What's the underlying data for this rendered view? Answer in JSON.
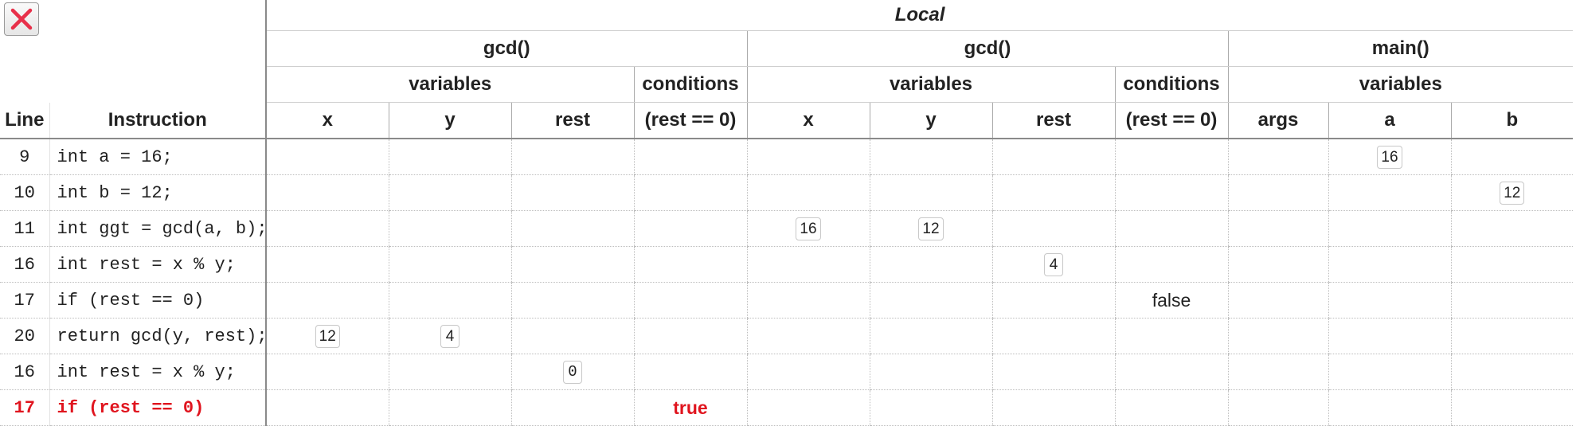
{
  "header": {
    "local_label": "Local",
    "frames": [
      "gcd()",
      "gcd()",
      "main()"
    ],
    "groups": [
      "variables",
      "conditions",
      "variables",
      "conditions",
      "variables"
    ],
    "columns": {
      "line": "Line",
      "instruction": "Instruction",
      "f1_x": "x",
      "f1_y": "y",
      "f1_rest": "rest",
      "f1_cond": "(rest == 0)",
      "f2_x": "x",
      "f2_y": "y",
      "f2_rest": "rest",
      "f2_cond": "(rest == 0)",
      "m_args": "args",
      "m_a": "a",
      "m_b": "b"
    }
  },
  "rows": [
    {
      "line": "9",
      "instruction": "int a = 16;",
      "f1_x": "",
      "f1_y": "",
      "f1_rest": "",
      "f1_cond": "",
      "f2_x": "",
      "f2_y": "",
      "f2_rest": "",
      "f2_cond": "",
      "m_args": "",
      "m_a": "16",
      "m_b": ""
    },
    {
      "line": "10",
      "instruction": "int b = 12;",
      "f1_x": "",
      "f1_y": "",
      "f1_rest": "",
      "f1_cond": "",
      "f2_x": "",
      "f2_y": "",
      "f2_rest": "",
      "f2_cond": "",
      "m_args": "",
      "m_a": "",
      "m_b": "12"
    },
    {
      "line": "11",
      "instruction": "int ggt = gcd(a, b);",
      "f1_x": "",
      "f1_y": "",
      "f1_rest": "",
      "f1_cond": "",
      "f2_x": "16",
      "f2_y": "12",
      "f2_rest": "",
      "f2_cond": "",
      "m_args": "",
      "m_a": "",
      "m_b": ""
    },
    {
      "line": "16",
      "instruction": "int rest = x % y;",
      "f1_x": "",
      "f1_y": "",
      "f1_rest": "",
      "f1_cond": "",
      "f2_x": "",
      "f2_y": "",
      "f2_rest": "4",
      "f2_cond": "",
      "m_args": "",
      "m_a": "",
      "m_b": ""
    },
    {
      "line": "17",
      "instruction": "if (rest == 0)",
      "f1_x": "",
      "f1_y": "",
      "f1_rest": "",
      "f1_cond": "",
      "f2_x": "",
      "f2_y": "",
      "f2_rest": "",
      "f2_cond": "false",
      "m_args": "",
      "m_a": "",
      "m_b": ""
    },
    {
      "line": "20",
      "instruction": "return gcd(y, rest);",
      "f1_x": "12",
      "f1_y": "4",
      "f1_rest": "",
      "f1_cond": "",
      "f2_x": "",
      "f2_y": "",
      "f2_rest": "",
      "f2_cond": "",
      "m_args": "",
      "m_a": "",
      "m_b": ""
    },
    {
      "line": "16",
      "instruction": "int rest = x % y;",
      "f1_x": "",
      "f1_y": "",
      "f1_rest": "0",
      "f1_cond": "",
      "f2_x": "",
      "f2_y": "",
      "f2_rest": "",
      "f2_cond": "",
      "m_args": "",
      "m_a": "",
      "m_b": ""
    },
    {
      "line": "17",
      "instruction": "if (rest == 0)",
      "f1_x": "",
      "f1_y": "",
      "f1_rest": "",
      "f1_cond": "true",
      "f2_x": "",
      "f2_y": "",
      "f2_rest": "",
      "f2_cond": "",
      "m_args": "",
      "m_a": "",
      "m_b": ""
    }
  ],
  "current_row_index": 7,
  "colors": {
    "current_line": "#e0141e",
    "condition_true": "#e0141e",
    "close_icon": "#e8304a"
  },
  "close_button": {
    "icon": "close-icon"
  }
}
